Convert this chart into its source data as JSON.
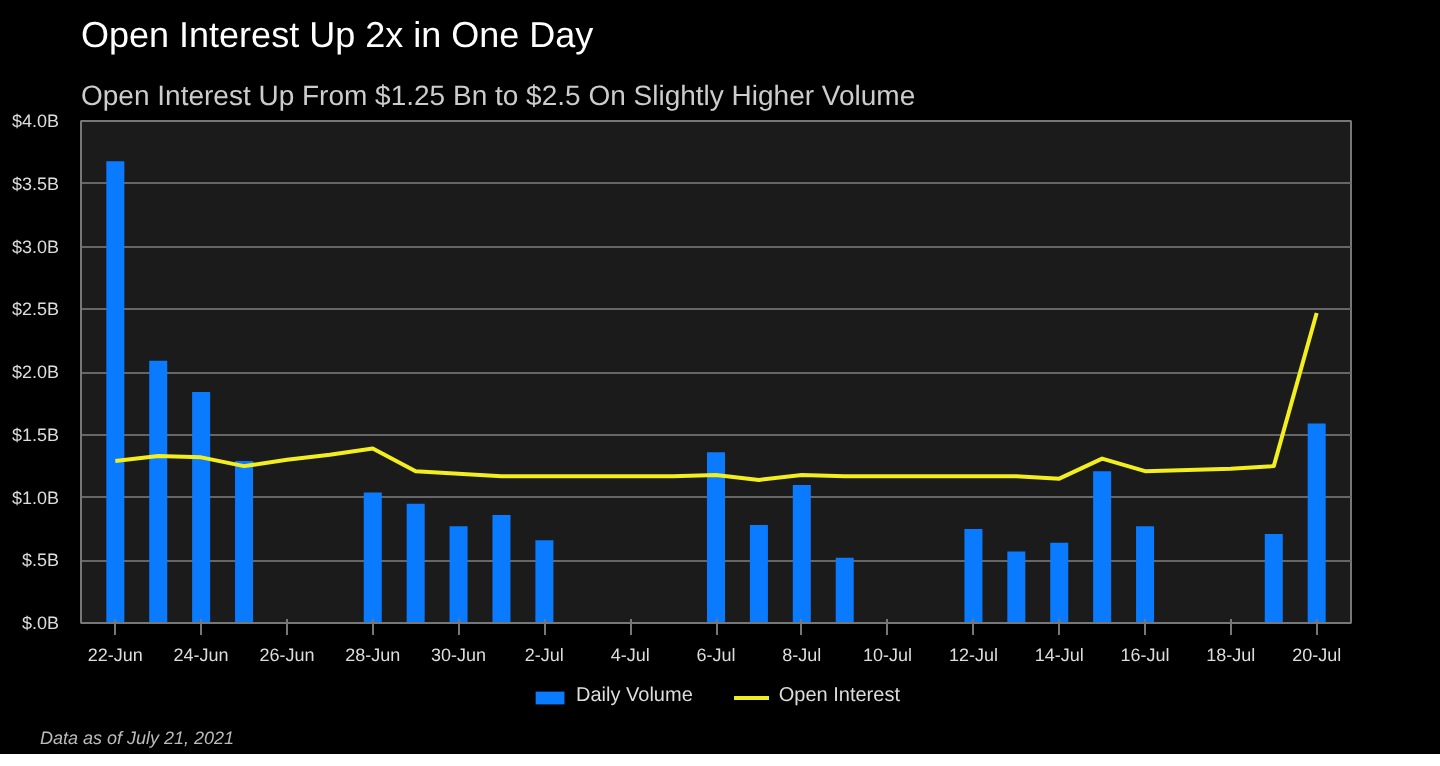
{
  "chart_data": {
    "type": "bar",
    "title": "Open Interest Up 2x in One Day",
    "subtitle": "Open Interest Up From $1.25 Bn to $2.5 On Slightly Higher Volume",
    "annotations": [
      "Data as of July 21, 2021"
    ],
    "categories": [
      "22-Jun",
      null,
      "24-Jun",
      null,
      "26-Jun",
      null,
      "28-Jun",
      null,
      "30-Jun",
      null,
      "2-Jul",
      null,
      "4-Jul",
      null,
      "6-Jul",
      null,
      "8-Jul",
      null,
      "10-Jul",
      null,
      "12-Jul",
      null,
      "14-Jul",
      null,
      "16-Jul",
      null,
      "18-Jul",
      null,
      "20-Jul"
    ],
    "series": [
      {
        "name": "Daily Volume",
        "color": "#0a7bff",
        "values": [
          3.68,
          2.09,
          1.84,
          1.29,
          null,
          null,
          1.04,
          0.95,
          0.77,
          0.86,
          0.66,
          null,
          null,
          null,
          1.36,
          0.78,
          1.1,
          0.52,
          null,
          null,
          0.75,
          0.57,
          0.64,
          1.21,
          0.77,
          null,
          null,
          0.71,
          1.59
        ]
      },
      {
        "name": "Open Interest",
        "type": "line",
        "color": "#f2ee1f",
        "values": [
          1.29,
          1.33,
          1.32,
          1.25,
          1.3,
          1.34,
          1.39,
          1.21,
          1.19,
          1.17,
          1.17,
          1.17,
          1.17,
          1.17,
          1.18,
          1.14,
          1.18,
          1.17,
          1.17,
          1.17,
          1.17,
          1.17,
          1.15,
          1.31,
          1.21,
          1.22,
          1.23,
          1.25,
          2.47
        ]
      }
    ],
    "ylim": [
      0,
      4
    ],
    "yticks": [
      {
        "value": 0,
        "label": "$.0B"
      },
      {
        "value": 0.5,
        "label": "$.5B"
      },
      {
        "value": 1,
        "label": "$1.0B"
      },
      {
        "value": 1.5,
        "label": "$1.5B"
      },
      {
        "value": 2,
        "label": "$2.0B"
      },
      {
        "value": 2.5,
        "label": "$2.5B"
      },
      {
        "value": 3,
        "label": "$3.0B"
      },
      {
        "value": 3.5,
        "label": "$3.5B"
      },
      {
        "value": 4,
        "label": "$4.0B"
      }
    ],
    "grid": "y",
    "legend": "bottom",
    "line_style": "solid"
  }
}
